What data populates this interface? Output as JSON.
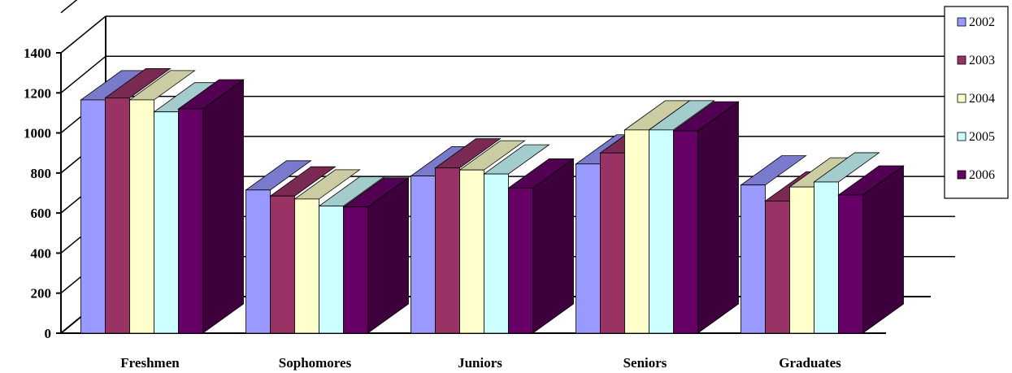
{
  "chart_data": {
    "type": "bar",
    "categories": [
      "Freshmen",
      "Sophomores",
      "Juniors",
      "Seniors",
      "Graduates"
    ],
    "series": [
      {
        "name": "2002",
        "color": "#9999FF",
        "values": [
          1165,
          715,
          785,
          845,
          740
        ]
      },
      {
        "name": "2003",
        "color": "#993366",
        "values": [
          1175,
          685,
          825,
          900,
          660
        ]
      },
      {
        "name": "2004",
        "color": "#FFFFCC",
        "values": [
          1165,
          670,
          815,
          1015,
          730
        ]
      },
      {
        "name": "2005",
        "color": "#CCFFFF",
        "values": [
          1105,
          635,
          795,
          1015,
          755
        ]
      },
      {
        "name": "2006",
        "color": "#660066",
        "values": [
          1120,
          630,
          725,
          1010,
          690
        ]
      }
    ],
    "yticks": [
      "0",
      "200",
      "400",
      "600",
      "800",
      "1000",
      "1200",
      "1400"
    ],
    "ylim": [
      0,
      1400
    ],
    "grid": true,
    "legend": "top-right",
    "style": "3d-clustered-column"
  }
}
